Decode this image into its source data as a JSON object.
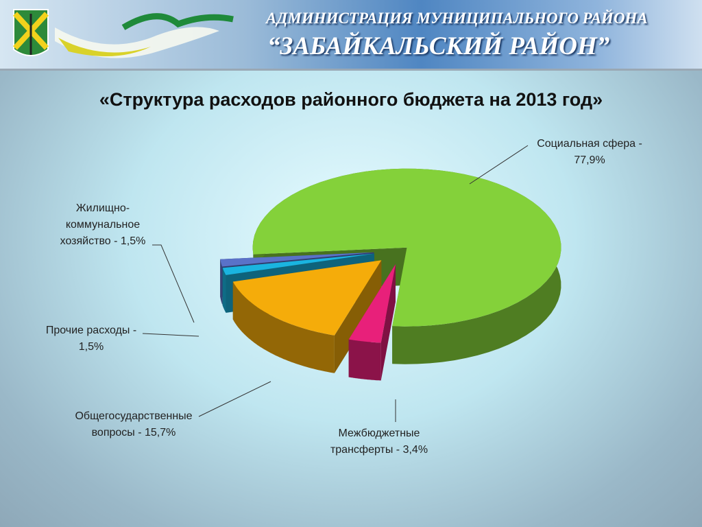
{
  "header": {
    "line1": "АДМИНИСТРАЦИЯ МУНИЦИПАЛЬНОГО РАЙОНА",
    "line2": "“ЗАБАЙКАЛЬСКИЙ РАЙОН”"
  },
  "chart_data": {
    "type": "pie",
    "title": "«Структура расходов районного бюджета на 2013 год»",
    "values": [
      77.9,
      3.4,
      15.7,
      1.5,
      1.5
    ],
    "value_labels": [
      "Социальная сфера - 77,9%",
      "Межбюджетные трансферты - 3,4%",
      "Общегосударственные вопросы - 15,7%",
      "Прочие расходы - 1,5%",
      "Жилищно-коммунальное хозяйство - 1,5%"
    ],
    "colors": [
      "#84d13a",
      "#e8207a",
      "#f5ac0a",
      "#1ab4e0",
      "#5a72c8"
    ]
  }
}
